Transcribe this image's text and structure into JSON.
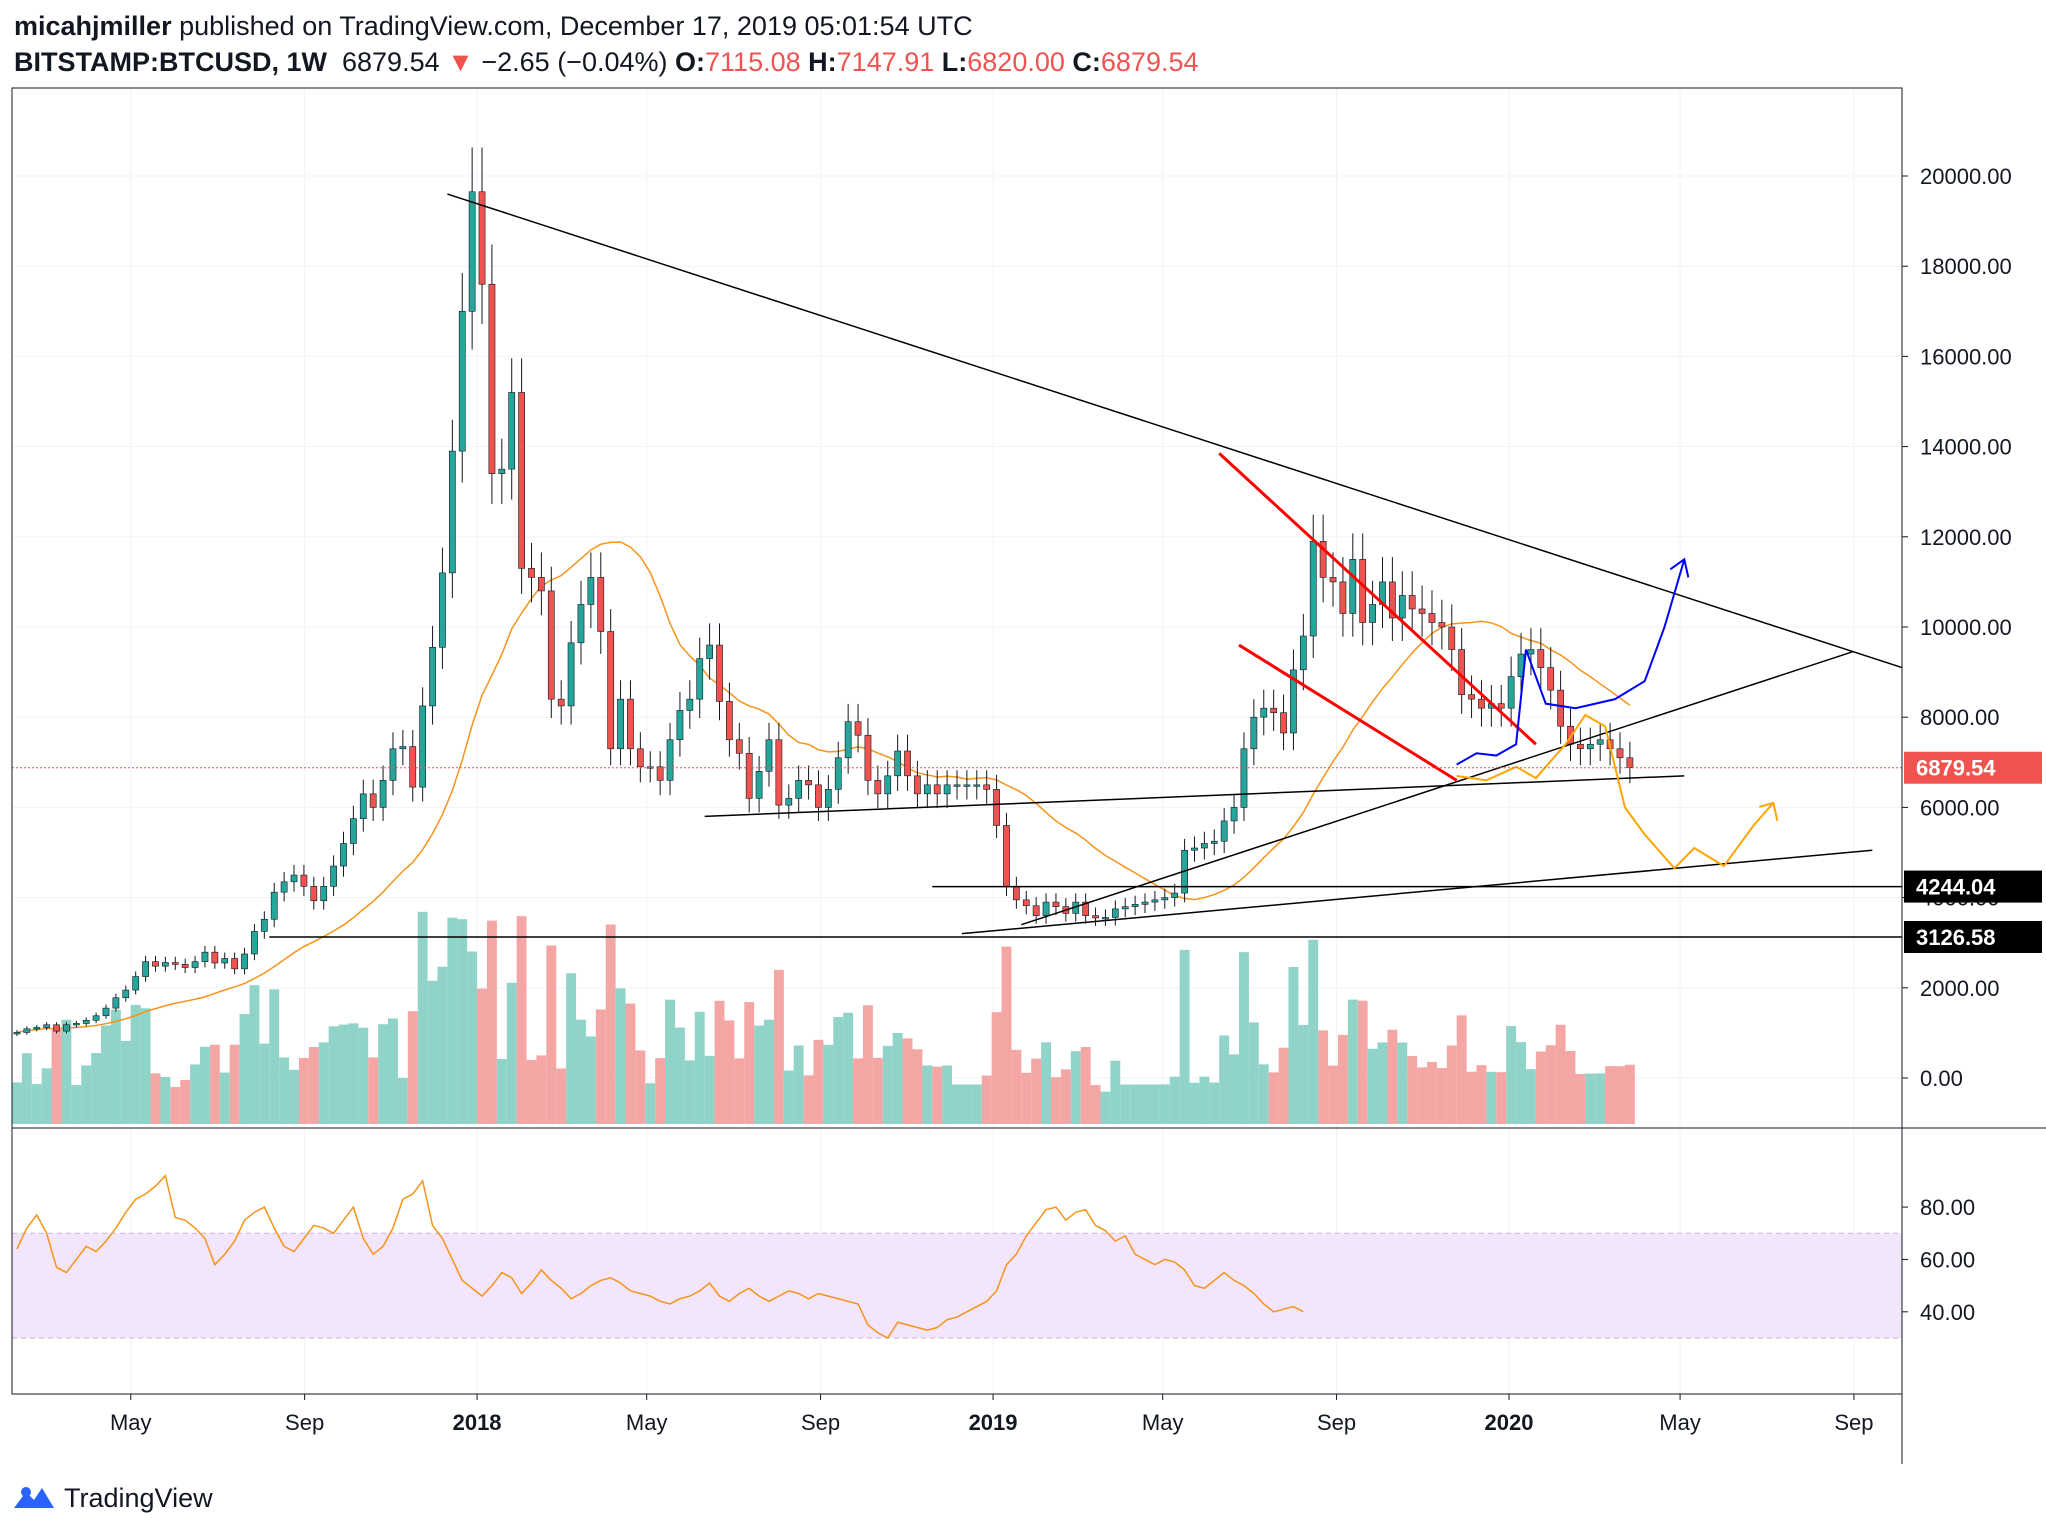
{
  "header": {
    "author": "micahjmiller",
    "published_text": "published on TradingView.com, December 17, 2019 05:01:54 UTC",
    "symbol": "BITSTAMP:BTCUSD, 1W",
    "last": "6879.54",
    "change_arrow": "▼",
    "change": "−2.65 (−0.04%)",
    "o_label": "O:",
    "o_value": "7115.08",
    "h_label": "H:",
    "h_value": "7147.91",
    "l_label": "L:",
    "l_value": "6820.00",
    "c_label": "C:",
    "c_value": "6879.54"
  },
  "footer": {
    "brand": "TradingView",
    "logo_icon": "tradingview-logo-icon"
  },
  "colors": {
    "up": "#26a69a",
    "down": "#ef5350",
    "vol_up": "#8fd3c9",
    "vol_down": "#f4a6a4",
    "ma": "#f7931a",
    "rsi": "#f7931a",
    "rsi_band": "#f3e5fc",
    "trend": "#000000",
    "channel": "#ff0000",
    "projection_blue": "#0000ff",
    "projection_orange": "#ffa500",
    "price_line": "#ef5350"
  },
  "chart_data": [
    {
      "type": "candlestick",
      "interval": "1W",
      "y_ticks": [
        "20000.00",
        "18000.00",
        "16000.00",
        "14000.00",
        "12000.00",
        "10000.00",
        "8000.00",
        "6000.00",
        "4000.00",
        "2000.00",
        "0.00"
      ],
      "ylim": [
        -1000,
        22000
      ],
      "x_ticks": [
        {
          "label": "May",
          "date": "2017-05-01",
          "bold": false
        },
        {
          "label": "Sep",
          "date": "2017-09-01",
          "bold": false
        },
        {
          "label": "2018",
          "date": "2018-01-01",
          "bold": true
        },
        {
          "label": "May",
          "date": "2018-05-01",
          "bold": false
        },
        {
          "label": "Sep",
          "date": "2018-09-01",
          "bold": false
        },
        {
          "label": "2019",
          "date": "2019-01-01",
          "bold": true
        },
        {
          "label": "May",
          "date": "2019-05-01",
          "bold": false
        },
        {
          "label": "Sep",
          "date": "2019-09-01",
          "bold": false
        },
        {
          "label": "2020",
          "date": "2020-01-01",
          "bold": true
        },
        {
          "label": "May",
          "date": "2020-05-01",
          "bold": false
        },
        {
          "label": "Sep",
          "date": "2020-09-01",
          "bold": false
        }
      ],
      "xlim": [
        "2017-02-06",
        "2020-10-05"
      ],
      "price_labels": [
        {
          "text": "6879.54",
          "value": 6879.54,
          "style": "last"
        },
        {
          "text": "4244.04",
          "value": 4244.04,
          "style": "level"
        },
        {
          "text": "3126.58",
          "value": 3126.58,
          "style": "level"
        }
      ],
      "series": [
        {
          "name": "BTCUSD",
          "kind": "ohlc",
          "start": "2017-02-06",
          "closes": [
            1010,
            1090,
            1120,
            1180,
            1040,
            1180,
            1210,
            1280,
            1380,
            1550,
            1780,
            1950,
            2250,
            2580,
            2480,
            2560,
            2520,
            2450,
            2580,
            2790,
            2550,
            2650,
            2420,
            2750,
            3250,
            3520,
            4120,
            4350,
            4500,
            4250,
            3930,
            4250,
            4700,
            5200,
            5750,
            6300,
            6000,
            6600,
            7300,
            7350,
            6450,
            8250,
            9550,
            11200,
            13900,
            17000,
            19650,
            17600,
            13400,
            13500,
            15200,
            11300,
            11100,
            10800,
            8400,
            8250,
            9650,
            10500,
            11100,
            9900,
            7300,
            8400,
            7300,
            6900,
            6900,
            6600,
            7500,
            8150,
            8400,
            9300,
            9600,
            8350,
            7500,
            7200,
            6200,
            6800,
            7500,
            6050,
            6200,
            6600,
            6500,
            6000,
            6400,
            7100,
            7900,
            7600,
            6600,
            6300,
            6700,
            7250,
            6700,
            6300,
            6500,
            6300,
            6500,
            6500,
            6500,
            6500,
            6400,
            5600,
            4250,
            3950,
            3820,
            3600,
            3900,
            3800,
            3650,
            3900,
            3600,
            3550,
            3560,
            3750,
            3800,
            3850,
            3900,
            3950,
            4000,
            4100,
            5050,
            5100,
            5200,
            5250,
            5700,
            6000,
            7300,
            8000,
            8200,
            8100,
            7650,
            9050,
            9800,
            11900,
            11100,
            11000,
            10300,
            11500,
            10100,
            10500,
            11000,
            10200,
            10700,
            10400,
            10300,
            10100,
            10000,
            9500,
            8500,
            8400,
            8200,
            8300,
            8200,
            8900,
            9400,
            9500,
            9100,
            8600,
            7800,
            7400,
            7300,
            7400,
            7500,
            7300,
            7100,
            6880
          ]
        },
        {
          "name": "MA",
          "kind": "line"
        },
        {
          "name": "Volume",
          "kind": "bar"
        }
      ],
      "drawings": {
        "trend_lines": [
          {
            "from": [
              "2017-12-11",
              19600
            ],
            "to": [
              "2020-10-05",
              9100
            ]
          },
          {
            "from": [
              "2018-06-11",
              5800
            ],
            "to": [
              "2020-05-04",
              6700
            ]
          },
          {
            "from": [
              "2018-12-10",
              3200
            ],
            "to": [
              "2020-09-14",
              5050
            ]
          },
          {
            "from": [
              "2019-01-21",
              3400
            ],
            "to": [
              "2020-08-31",
              9450
            ]
          },
          {
            "from": [
              "2018-11-19",
              4244.04
            ],
            "to": [
              "2020-10-05",
              4244.04
            ]
          },
          {
            "from": [
              "2017-08-07",
              3126.58
            ],
            "to": [
              "2020-10-05",
              3126.58
            ]
          }
        ],
        "channel_lines": [
          {
            "from": [
              "2019-06-10",
              13850
            ],
            "to": [
              "2020-01-20",
              7400
            ]
          },
          {
            "from": [
              "2019-06-24",
              9600
            ],
            "to": [
              "2019-11-25",
              6600
            ]
          }
        ],
        "blue_projection": [
          [
            "2019-11-25",
            6950
          ],
          [
            "2019-12-09",
            7200
          ],
          [
            "2019-12-23",
            7150
          ],
          [
            "2020-01-06",
            7400
          ],
          [
            "2020-01-13",
            9500
          ],
          [
            "2020-01-27",
            8300
          ],
          [
            "2020-02-17",
            8200
          ],
          [
            "2020-03-16",
            8400
          ],
          [
            "2020-04-06",
            8800
          ],
          [
            "2020-04-20",
            10000
          ],
          [
            "2020-05-04",
            11500
          ]
        ],
        "orange_projection": [
          [
            "2019-11-25",
            6700
          ],
          [
            "2019-12-16",
            6600
          ],
          [
            "2020-01-06",
            6900
          ],
          [
            "2020-01-20",
            6650
          ],
          [
            "2020-02-10",
            7400
          ],
          [
            "2020-02-24",
            8050
          ],
          [
            "2020-03-09",
            7800
          ],
          [
            "2020-03-23",
            6000
          ],
          [
            "2020-04-06",
            5400
          ],
          [
            "2020-04-27",
            4650
          ],
          [
            "2020-05-11",
            5100
          ],
          [
            "2020-06-01",
            4700
          ],
          [
            "2020-06-22",
            5600
          ],
          [
            "2020-07-06",
            6100
          ]
        ]
      }
    },
    {
      "type": "line",
      "name": "RSI",
      "y_ticks": [
        "80.00",
        "60.00",
        "40.00"
      ],
      "ylim": [
        25,
        95
      ],
      "band": [
        30,
        70
      ],
      "values": [
        64,
        72,
        77,
        70,
        57,
        55,
        60,
        65,
        63,
        67,
        72,
        78,
        83,
        85,
        88,
        92,
        76,
        75,
        72,
        68,
        58,
        62,
        67,
        75,
        78,
        80,
        72,
        65,
        63,
        68,
        73,
        72,
        70,
        75,
        80,
        68,
        62,
        65,
        72,
        83,
        85,
        90,
        73,
        68,
        60,
        52,
        49,
        46,
        50,
        55,
        53,
        47,
        51,
        56,
        52,
        49,
        45,
        47,
        50,
        52,
        53,
        51,
        48,
        47,
        46,
        44,
        43,
        45,
        46,
        48,
        51,
        46,
        44,
        47,
        49,
        46,
        44,
        46,
        48,
        47,
        45,
        47,
        46,
        45,
        44,
        43,
        35,
        32,
        30,
        36,
        35,
        34,
        33,
        34,
        37,
        38,
        40,
        42,
        44,
        48,
        58,
        62,
        69,
        74,
        79,
        80,
        75,
        78,
        79,
        73,
        71,
        67,
        69,
        62,
        60,
        58,
        60,
        59,
        56,
        50,
        49,
        52,
        55,
        52,
        50,
        47,
        43,
        40,
        41,
        42,
        40
      ]
    }
  ]
}
